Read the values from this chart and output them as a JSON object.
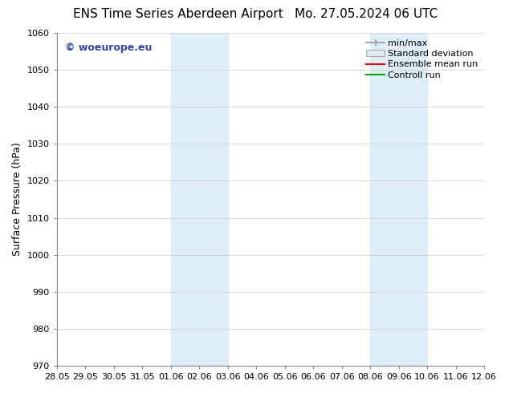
{
  "title_left": "ENS Time Series Aberdeen Airport",
  "title_right": "Mo. 27.05.2024 06 UTC",
  "ylabel": "Surface Pressure (hPa)",
  "ylim": [
    970,
    1060
  ],
  "yticks": [
    970,
    980,
    990,
    1000,
    1010,
    1020,
    1030,
    1040,
    1050,
    1060
  ],
  "xtick_labels": [
    "28.05",
    "29.05",
    "30.05",
    "31.05",
    "01.06",
    "02.06",
    "03.06",
    "04.06",
    "05.06",
    "06.06",
    "07.06",
    "08.06",
    "09.06",
    "10.06",
    "11.06",
    "12.06"
  ],
  "xtick_positions": [
    0,
    1,
    2,
    3,
    4,
    5,
    6,
    7,
    8,
    9,
    10,
    11,
    12,
    13,
    14,
    15
  ],
  "shaded_regions": [
    {
      "xmin": 4,
      "xmax": 6,
      "color": "#ddeef8"
    },
    {
      "xmin": 11,
      "xmax": 13,
      "color": "#ddeef8"
    }
  ],
  "watermark_text": "© woeurope.eu",
  "watermark_color": "#3344bb",
  "legend_entries": [
    {
      "label": "min/max",
      "color": "#999999",
      "style": "minmax"
    },
    {
      "label": "Standard deviation",
      "color": "#cccccc",
      "style": "band"
    },
    {
      "label": "Ensemble mean run",
      "color": "#ff0000",
      "style": "line"
    },
    {
      "label": "Controll run",
      "color": "#00aa00",
      "style": "line"
    }
  ],
  "background_color": "#ffffff",
  "grid_color": "#cccccc",
  "title_fontsize": 11,
  "tick_fontsize": 8,
  "ylabel_fontsize": 9,
  "watermark_fontsize": 9,
  "legend_fontsize": 8
}
